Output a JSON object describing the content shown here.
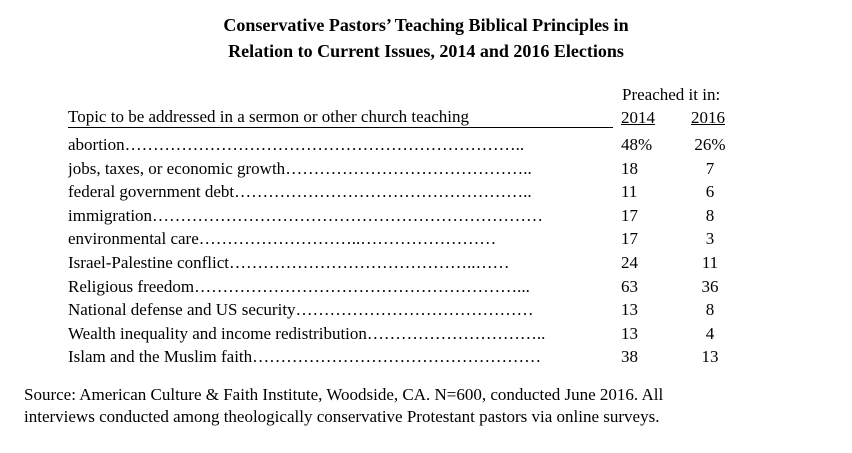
{
  "title_line1": "Conservative Pastors’ Teaching Biblical Principles in",
  "title_line2": "Relation to Current Issues, 2014 and 2016 Elections",
  "table_header": {
    "preached": "Preached it in:",
    "topic": "Topic to be addressed in a sermon or other church teaching",
    "col_2014": "2014",
    "col_2016": "2016"
  },
  "chart_data": {
    "type": "table",
    "title": "Conservative Pastors’ Teaching Biblical Principles in Relation to Current Issues, 2014 and 2016 Elections",
    "columns": [
      "Topic to be addressed in a sermon or other church teaching",
      "2014",
      "2016"
    ],
    "rows": [
      {
        "topic": "abortion",
        "v2014": "48%",
        "v2016": "26%",
        "leader": "…………………………………………………………….."
      },
      {
        "topic": "jobs, taxes, or economic growth",
        "v2014": "18",
        "v2016": "7",
        "leader": "…………………………………….."
      },
      {
        "topic": "federal government debt",
        "v2014": "11",
        "v2016": "6",
        "leader": "…………………………………………….."
      },
      {
        "topic": "immigration",
        "v2014": "17",
        "v2016": "8",
        "leader": "……………………………………………………………"
      },
      {
        "topic": "environmental care",
        "v2014": "17",
        "v2016": "3",
        "leader": "………………………..……………………"
      },
      {
        "topic": "Israel-Palestine conflict",
        "v2014": "24",
        "v2016": "11",
        "leader": "……………………………………..……"
      },
      {
        "topic": "Religious freedom",
        "v2014": "63",
        "v2016": "36",
        "leader": "…………………………………………………..."
      },
      {
        "topic": "National defense and US security",
        "v2014": "13",
        "v2016": "8",
        "leader": "……………………………………"
      },
      {
        "topic": "Wealth inequality and income redistribution",
        "v2014": "13",
        "v2016": "4",
        "leader": "………………………….."
      },
      {
        "topic": "Islam and the Muslim faith",
        "v2014": "38",
        "v2016": "13",
        "leader": "……………………………………………"
      }
    ]
  },
  "source_line1": "Source: American Culture & Faith Institute, Woodside, CA. N=600,  conducted June 2016. All",
  "source_line2": "interviews conducted among theologically conservative Protestant pastors via online surveys."
}
